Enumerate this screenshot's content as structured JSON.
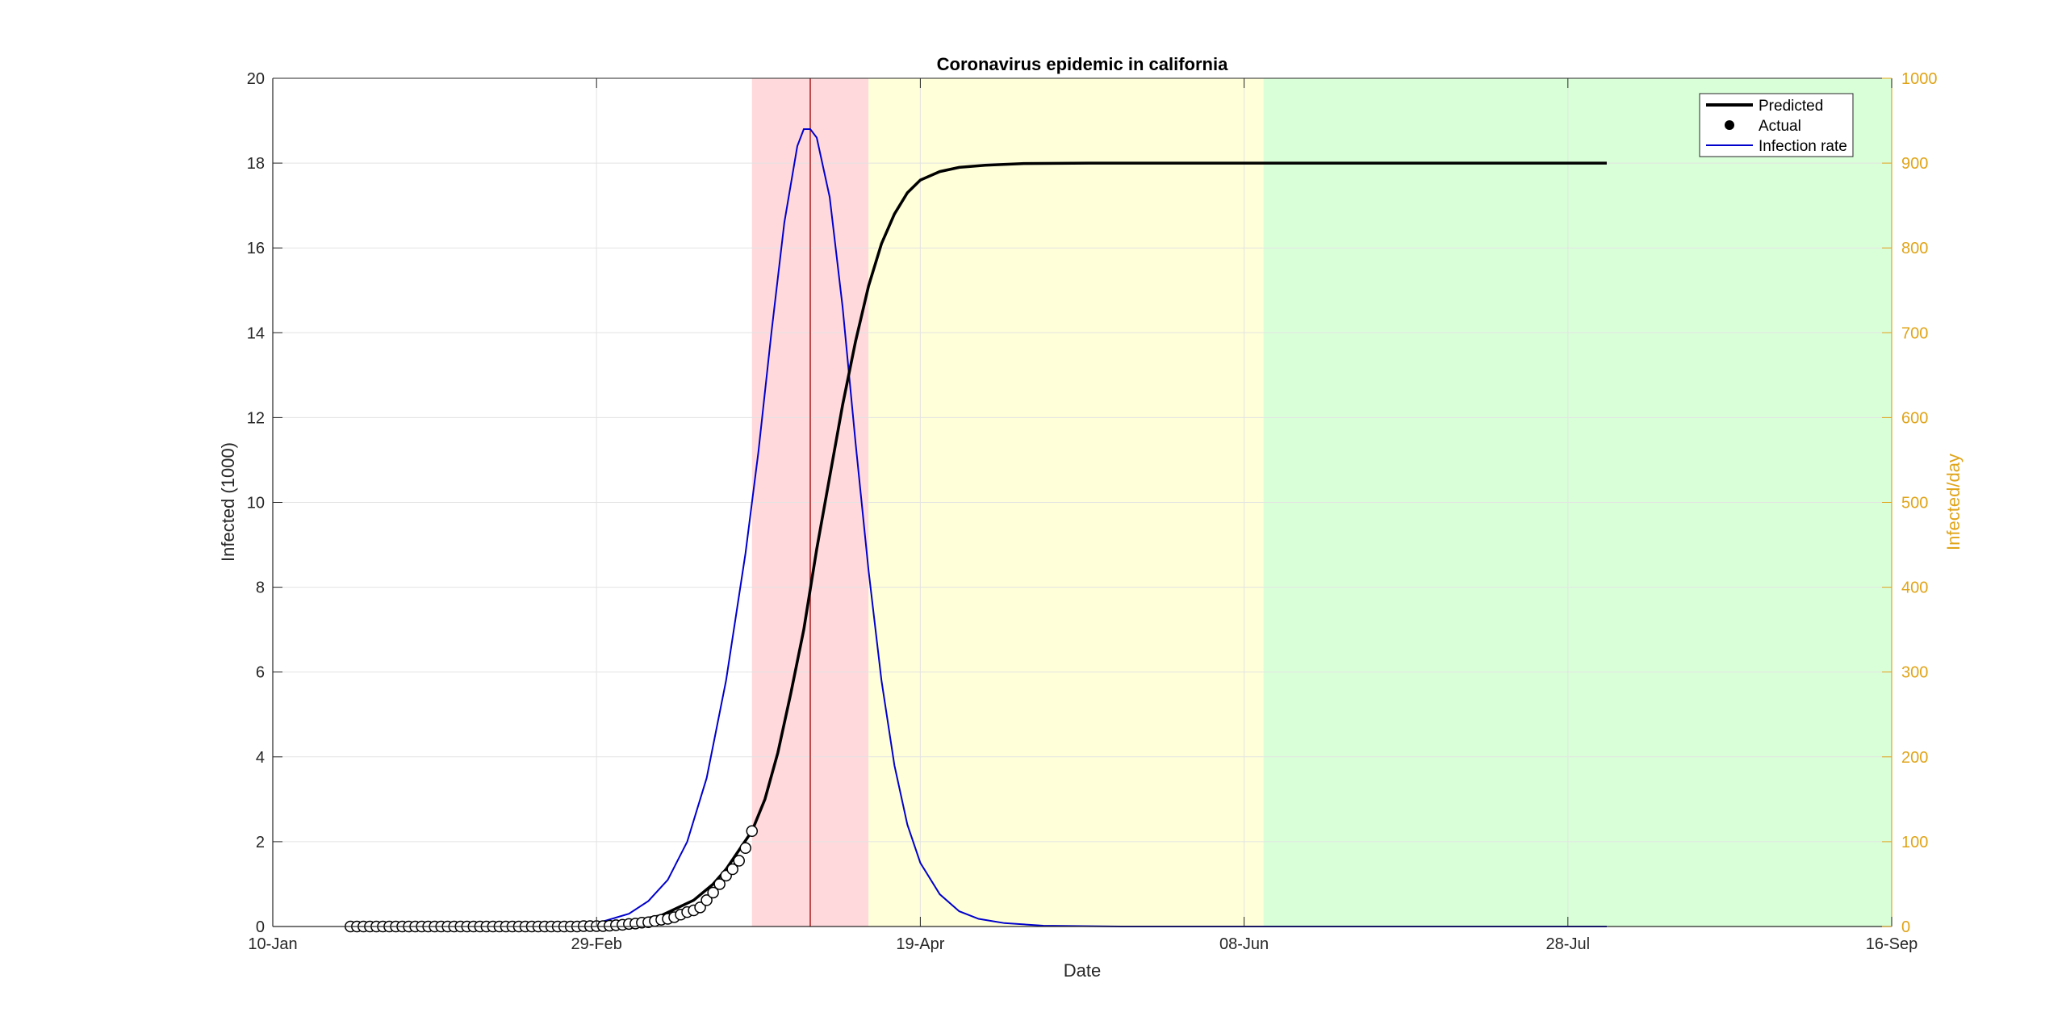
{
  "chart_data": {
    "type": "line",
    "title": "Coronavirus epidemic in california",
    "xlabel": "Date",
    "ylabel_left": "Infected (1000)",
    "ylabel_right": "Infected/day",
    "xlim": [
      "2020-01-10",
      "2020-09-16"
    ],
    "ylim_left": [
      0,
      20
    ],
    "ylim_right": [
      0,
      1000
    ],
    "x_ticks": [
      {
        "date": "2020-01-10",
        "label": "10-Jan"
      },
      {
        "date": "2020-02-29",
        "label": "29-Feb"
      },
      {
        "date": "2020-04-19",
        "label": "19-Apr"
      },
      {
        "date": "2020-06-08",
        "label": "08-Jun"
      },
      {
        "date": "2020-07-28",
        "label": "28-Jul"
      },
      {
        "date": "2020-09-16",
        "label": "16-Sep"
      }
    ],
    "y_ticks_left": [
      0,
      2,
      4,
      6,
      8,
      10,
      12,
      14,
      16,
      18,
      20
    ],
    "y_ticks_right": [
      0,
      100,
      200,
      300,
      400,
      500,
      600,
      700,
      800,
      900,
      1000
    ],
    "grid": true,
    "legend_position": "top-right",
    "legend": [
      {
        "label": "Predicted",
        "style": "line-thick",
        "color": "#000000"
      },
      {
        "label": "Actual",
        "style": "marker",
        "color": "#000000"
      },
      {
        "label": "Infection rate",
        "style": "line-thin",
        "color": "#0000cc"
      }
    ],
    "phases": [
      {
        "start": "2020-03-24",
        "end": "2020-04-11",
        "color": "#ffd9dc"
      },
      {
        "start": "2020-04-11",
        "end": "2020-06-11",
        "color": "#ffffd9"
      },
      {
        "start": "2020-06-11",
        "end": "2020-09-16",
        "color": "#d9ffd9"
      }
    ],
    "vline": {
      "date": "2020-04-02",
      "color": "#a81c1c"
    },
    "colors": {
      "predicted": "#000000",
      "rate": "#0000cc",
      "right_axis": "#e0a418",
      "axis": "#262626",
      "grid": "#e3e3e3"
    },
    "series": [
      {
        "name": "Predicted",
        "axis": "left",
        "x": [
          "2020-01-22",
          "2020-02-01",
          "2020-02-10",
          "2020-02-20",
          "2020-02-29",
          "2020-03-05",
          "2020-03-10",
          "2020-03-15",
          "2020-03-18",
          "2020-03-20",
          "2020-03-22",
          "2020-03-24",
          "2020-03-26",
          "2020-03-28",
          "2020-03-30",
          "2020-04-01",
          "2020-04-03",
          "2020-04-05",
          "2020-04-07",
          "2020-04-09",
          "2020-04-11",
          "2020-04-13",
          "2020-04-15",
          "2020-04-17",
          "2020-04-19",
          "2020-04-22",
          "2020-04-25",
          "2020-04-29",
          "2020-05-05",
          "2020-05-15",
          "2020-06-08",
          "2020-07-01",
          "2020-08-03"
        ],
        "y": [
          0.0,
          0.0,
          0.0,
          0.01,
          0.04,
          0.1,
          0.26,
          0.62,
          1.0,
          1.35,
          1.8,
          2.25,
          3.0,
          4.1,
          5.5,
          7.0,
          8.9,
          10.6,
          12.3,
          13.8,
          15.1,
          16.1,
          16.8,
          17.3,
          17.6,
          17.8,
          17.9,
          17.95,
          17.99,
          18.0,
          18.0,
          18.0,
          18.0
        ]
      },
      {
        "name": "Actual",
        "axis": "left",
        "x": [
          "2020-01-22",
          "2020-01-23",
          "2020-01-24",
          "2020-01-25",
          "2020-01-26",
          "2020-01-27",
          "2020-01-28",
          "2020-01-29",
          "2020-01-30",
          "2020-01-31",
          "2020-02-01",
          "2020-02-02",
          "2020-02-03",
          "2020-02-04",
          "2020-02-05",
          "2020-02-06",
          "2020-02-07",
          "2020-02-08",
          "2020-02-09",
          "2020-02-10",
          "2020-02-11",
          "2020-02-12",
          "2020-02-13",
          "2020-02-14",
          "2020-02-15",
          "2020-02-16",
          "2020-02-17",
          "2020-02-18",
          "2020-02-19",
          "2020-02-20",
          "2020-02-21",
          "2020-02-22",
          "2020-02-23",
          "2020-02-24",
          "2020-02-25",
          "2020-02-26",
          "2020-02-27",
          "2020-02-28",
          "2020-02-29",
          "2020-03-01",
          "2020-03-02",
          "2020-03-03",
          "2020-03-04",
          "2020-03-05",
          "2020-03-06",
          "2020-03-07",
          "2020-03-08",
          "2020-03-09",
          "2020-03-10",
          "2020-03-11",
          "2020-03-12",
          "2020-03-13",
          "2020-03-14",
          "2020-03-15",
          "2020-03-16",
          "2020-03-17",
          "2020-03-18",
          "2020-03-19",
          "2020-03-20",
          "2020-03-21",
          "2020-03-22",
          "2020-03-23",
          "2020-03-24"
        ],
        "y": [
          0.0,
          0.0,
          0.0,
          0.0,
          0.0,
          0.0,
          0.0,
          0.0,
          0.0,
          0.0,
          0.0,
          0.0,
          0.0,
          0.0,
          0.0,
          0.0,
          0.0,
          0.0,
          0.0,
          0.0,
          0.0,
          0.0,
          0.0,
          0.0,
          0.0,
          0.0,
          0.0,
          0.0,
          0.0,
          0.0,
          0.0,
          0.0,
          0.0,
          0.0,
          0.0,
          0.0,
          0.01,
          0.01,
          0.01,
          0.01,
          0.02,
          0.03,
          0.04,
          0.06,
          0.07,
          0.09,
          0.1,
          0.13,
          0.16,
          0.18,
          0.22,
          0.28,
          0.34,
          0.38,
          0.45,
          0.62,
          0.8,
          1.0,
          1.2,
          1.35,
          1.55,
          1.85,
          2.25
        ]
      },
      {
        "name": "Infection rate",
        "axis": "right",
        "x": [
          "2020-01-22",
          "2020-02-15",
          "2020-02-25",
          "2020-03-01",
          "2020-03-05",
          "2020-03-08",
          "2020-03-11",
          "2020-03-14",
          "2020-03-17",
          "2020-03-20",
          "2020-03-23",
          "2020-03-25",
          "2020-03-27",
          "2020-03-29",
          "2020-03-31",
          "2020-04-01",
          "2020-04-02",
          "2020-04-03",
          "2020-04-05",
          "2020-04-07",
          "2020-04-09",
          "2020-04-11",
          "2020-04-13",
          "2020-04-15",
          "2020-04-17",
          "2020-04-19",
          "2020-04-22",
          "2020-04-25",
          "2020-04-28",
          "2020-05-02",
          "2020-05-08",
          "2020-05-20",
          "2020-06-08",
          "2020-08-03"
        ],
        "y": [
          0,
          0,
          2,
          6,
          15,
          30,
          55,
          100,
          175,
          290,
          440,
          560,
          700,
          830,
          920,
          940,
          940,
          930,
          860,
          730,
          570,
          420,
          290,
          190,
          120,
          75,
          38,
          18,
          9,
          4,
          1,
          0,
          0,
          0
        ]
      }
    ]
  }
}
